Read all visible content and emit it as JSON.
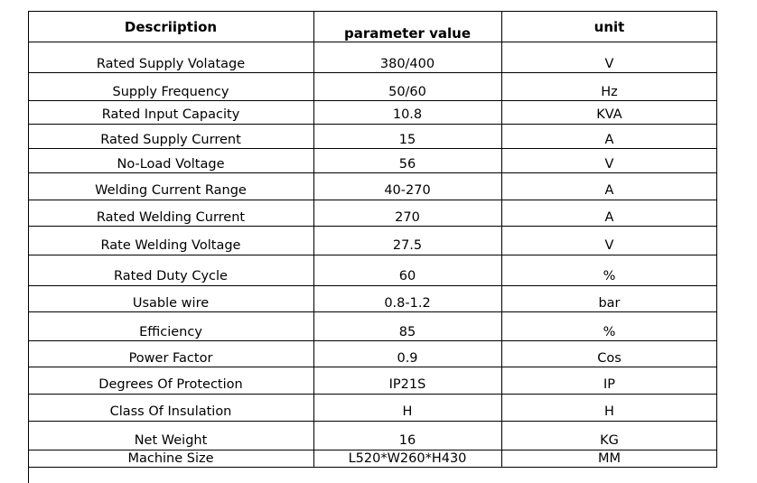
{
  "table": {
    "headers": {
      "description": "Descriiption",
      "parameter": "parameter value",
      "unit": "unit"
    },
    "rows": [
      {
        "description": "Rated Supply Volatage",
        "value": "380/400",
        "unit": "V"
      },
      {
        "description": "Supply Frequency",
        "value": "50/60",
        "unit": "Hz"
      },
      {
        "description": "Rated Input Capacity",
        "value": "10.8",
        "unit": "KVA"
      },
      {
        "description": "Rated Supply Current",
        "value": "15",
        "unit": "A"
      },
      {
        "description": "No-Load Voltage",
        "value": "56",
        "unit": "V"
      },
      {
        "description": "Welding Current Range",
        "value": "40-270",
        "unit": "A"
      },
      {
        "description": "Rated Welding Current",
        "value": "270",
        "unit": "A"
      },
      {
        "description": "Rate Welding Voltage",
        "value": "27.5",
        "unit": "V"
      },
      {
        "description": "Rated Duty Cycle",
        "value": "60",
        "unit": "%"
      },
      {
        "description": "Usable wire",
        "value": "0.8-1.2",
        "unit": "bar"
      },
      {
        "description": "Efficiency",
        "value": "85",
        "unit": "%"
      },
      {
        "description": "Power Factor",
        "value": "0.9",
        "unit": "Cos"
      },
      {
        "description": "Degrees Of Protection",
        "value": "IP21S",
        "unit": "IP"
      },
      {
        "description": "Class Of Insulation",
        "value": "H",
        "unit": "H"
      },
      {
        "description": "Net Weight",
        "value": "16",
        "unit": "KG"
      },
      {
        "description": "Machine Size",
        "value": "L520*W260*H430",
        "unit": "MM"
      }
    ]
  }
}
